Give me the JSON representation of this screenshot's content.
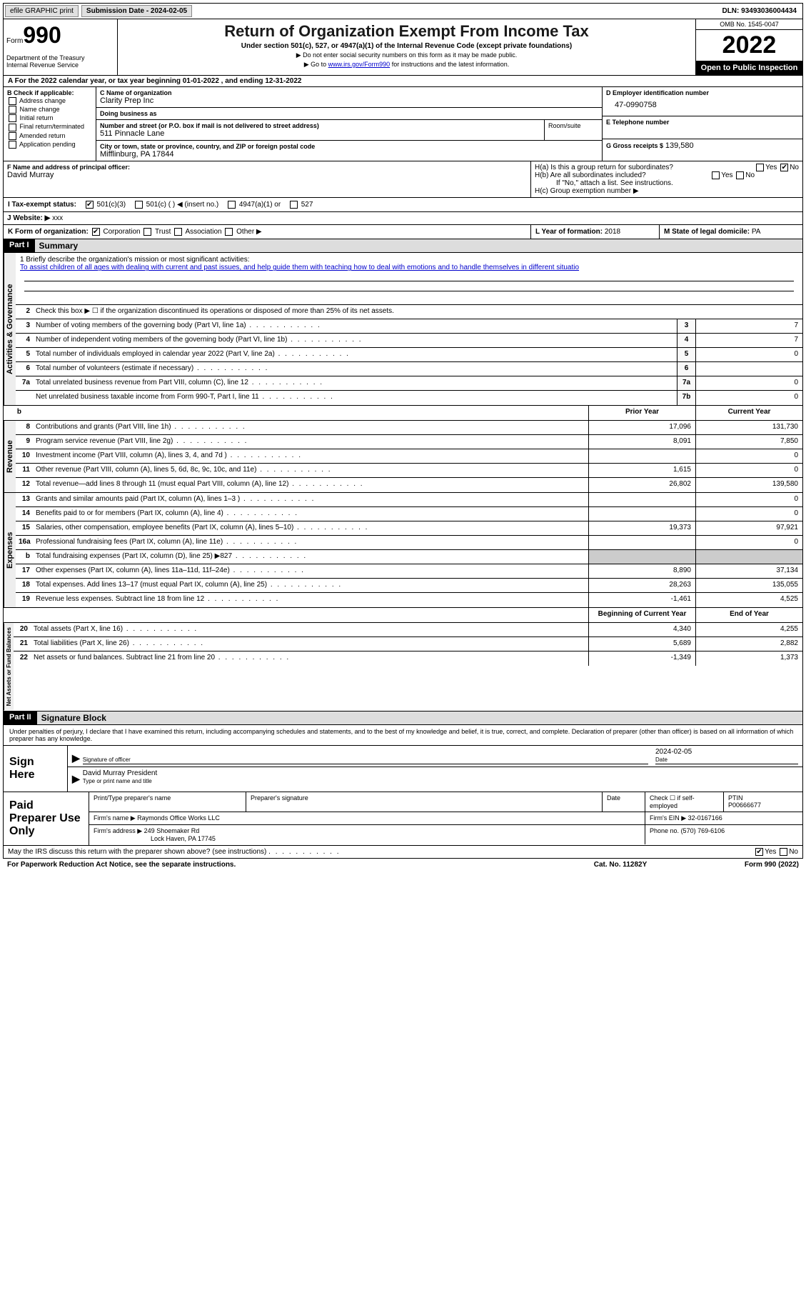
{
  "topbar": {
    "efile": "efile GRAPHIC print",
    "submission_label": "Submission Date - 2024-02-05",
    "dln": "DLN: 93493036004434"
  },
  "header": {
    "form_label": "Form",
    "form_num": "990",
    "title": "Return of Organization Exempt From Income Tax",
    "sub": "Under section 501(c), 527, or 4947(a)(1) of the Internal Revenue Code (except private foundations)",
    "note1": "▶ Do not enter social security numbers on this form as it may be made public.",
    "note2_pre": "▶ Go to ",
    "note2_link": "www.irs.gov/Form990",
    "note2_post": " for instructions and the latest information.",
    "dept": "Department of the Treasury\nInternal Revenue Service",
    "omb": "OMB No. 1545-0047",
    "year": "2022",
    "inspect": "Open to Public Inspection"
  },
  "period": "A For the 2022 calendar year, or tax year beginning 01-01-2022   , and ending 12-31-2022",
  "section_b": {
    "label": "B Check if applicable:",
    "opts": [
      "Address change",
      "Name change",
      "Initial return",
      "Final return/terminated",
      "Amended return",
      "Application pending"
    ]
  },
  "section_c": {
    "name_label": "C Name of organization",
    "name": "Clarity Prep Inc",
    "dba_label": "Doing business as",
    "addr_label": "Number and street (or P.O. box if mail is not delivered to street address)",
    "addr": "511 Pinnacle Lane",
    "room_label": "Room/suite",
    "city_label": "City or town, state or province, country, and ZIP or foreign postal code",
    "city": "Mifflinburg, PA  17844"
  },
  "section_d": {
    "ein_label": "D Employer identification number",
    "ein": "47-0990758",
    "phone_label": "E Telephone number",
    "gross_label": "G Gross receipts $",
    "gross": "139,580"
  },
  "section_f": {
    "label": "F  Name and address of principal officer:",
    "name": "David Murray"
  },
  "section_h": {
    "ha": "H(a)  Is this a group return for subordinates?",
    "hb": "H(b)  Are all subordinates included?",
    "hb_note": "If \"No,\" attach a list. See instructions.",
    "hc": "H(c)  Group exemption number ▶",
    "yes": "Yes",
    "no": "No"
  },
  "section_i": {
    "label": "I  Tax-exempt status:",
    "o1": "501(c)(3)",
    "o2": "501(c) (  ) ◀ (insert no.)",
    "o3": "4947(a)(1) or",
    "o4": "527"
  },
  "section_j": {
    "label": "J  Website: ▶",
    "val": "xxx"
  },
  "section_k": {
    "label": "K Form of organization:",
    "o1": "Corporation",
    "o2": "Trust",
    "o3": "Association",
    "o4": "Other ▶"
  },
  "section_l": {
    "label": "L Year of formation:",
    "val": "2018"
  },
  "section_m": {
    "label": "M State of legal domicile:",
    "val": "PA"
  },
  "part1": {
    "num": "Part I",
    "title": "Summary"
  },
  "mission": {
    "label": "1  Briefly describe the organization's mission or most significant activities:",
    "text": "To assist children of all ages with dealing with current and past issues, and help guide them with teaching how to deal with emotions and to handle themselves in different situatio"
  },
  "line2": "Check this box ▶ ☐ if the organization discontinued its operations or disposed of more than 25% of its net assets.",
  "gov_lines": [
    {
      "n": "3",
      "d": "Number of voting members of the governing body (Part VI, line 1a)",
      "box": "3",
      "v": "7"
    },
    {
      "n": "4",
      "d": "Number of independent voting members of the governing body (Part VI, line 1b)",
      "box": "4",
      "v": "7"
    },
    {
      "n": "5",
      "d": "Total number of individuals employed in calendar year 2022 (Part V, line 2a)",
      "box": "5",
      "v": "0"
    },
    {
      "n": "6",
      "d": "Total number of volunteers (estimate if necessary)",
      "box": "6",
      "v": ""
    },
    {
      "n": "7a",
      "d": "Total unrelated business revenue from Part VIII, column (C), line 12",
      "box": "7a",
      "v": "0"
    },
    {
      "n": "",
      "d": "Net unrelated business taxable income from Form 990-T, Part I, line 11",
      "box": "7b",
      "v": "0"
    }
  ],
  "col_headers": {
    "prior": "Prior Year",
    "current": "Current Year"
  },
  "rev_lines": [
    {
      "n": "8",
      "d": "Contributions and grants (Part VIII, line 1h)",
      "p": "17,096",
      "c": "131,730"
    },
    {
      "n": "9",
      "d": "Program service revenue (Part VIII, line 2g)",
      "p": "8,091",
      "c": "7,850"
    },
    {
      "n": "10",
      "d": "Investment income (Part VIII, column (A), lines 3, 4, and 7d )",
      "p": "",
      "c": "0"
    },
    {
      "n": "11",
      "d": "Other revenue (Part VIII, column (A), lines 5, 6d, 8c, 9c, 10c, and 11e)",
      "p": "1,615",
      "c": "0"
    },
    {
      "n": "12",
      "d": "Total revenue—add lines 8 through 11 (must equal Part VIII, column (A), line 12)",
      "p": "26,802",
      "c": "139,580"
    }
  ],
  "exp_lines": [
    {
      "n": "13",
      "d": "Grants and similar amounts paid (Part IX, column (A), lines 1–3 )",
      "p": "",
      "c": "0"
    },
    {
      "n": "14",
      "d": "Benefits paid to or for members (Part IX, column (A), line 4)",
      "p": "",
      "c": "0"
    },
    {
      "n": "15",
      "d": "Salaries, other compensation, employee benefits (Part IX, column (A), lines 5–10)",
      "p": "19,373",
      "c": "97,921"
    },
    {
      "n": "16a",
      "d": "Professional fundraising fees (Part IX, column (A), line 11e)",
      "p": "",
      "c": "0"
    },
    {
      "n": "b",
      "d": "Total fundraising expenses (Part IX, column (D), line 25) ▶827",
      "p": "shade",
      "c": "shade"
    },
    {
      "n": "17",
      "d": "Other expenses (Part IX, column (A), lines 11a–11d, 11f–24e)",
      "p": "8,890",
      "c": "37,134"
    },
    {
      "n": "18",
      "d": "Total expenses. Add lines 13–17 (must equal Part IX, column (A), line 25)",
      "p": "28,263",
      "c": "135,055"
    },
    {
      "n": "19",
      "d": "Revenue less expenses. Subtract line 18 from line 12",
      "p": "-1,461",
      "c": "4,525"
    }
  ],
  "na_headers": {
    "begin": "Beginning of Current Year",
    "end": "End of Year"
  },
  "na_lines": [
    {
      "n": "20",
      "d": "Total assets (Part X, line 16)",
      "p": "4,340",
      "c": "4,255"
    },
    {
      "n": "21",
      "d": "Total liabilities (Part X, line 26)",
      "p": "5,689",
      "c": "2,882"
    },
    {
      "n": "22",
      "d": "Net assets or fund balances. Subtract line 21 from line 20",
      "p": "-1,349",
      "c": "1,373"
    }
  ],
  "part2": {
    "num": "Part II",
    "title": "Signature Block"
  },
  "sig": {
    "decl": "Under penalties of perjury, I declare that I have examined this return, including accompanying schedules and statements, and to the best of my knowledge and belief, it is true, correct, and complete. Declaration of preparer (other than officer) is based on all information of which preparer has any knowledge.",
    "sign_here": "Sign Here",
    "sig_officer": "Signature of officer",
    "date": "Date",
    "sig_date": "2024-02-05",
    "name_title": "David Murray  President",
    "type_label": "Type or print name and title"
  },
  "prep": {
    "label": "Paid Preparer Use Only",
    "print_label": "Print/Type preparer's name",
    "sig_label": "Preparer's signature",
    "date_label": "Date",
    "check_label": "Check ☐ if self-employed",
    "ptin_label": "PTIN",
    "ptin": "P00666677",
    "firm_name_label": "Firm's name    ▶",
    "firm_name": "Raymonds Office Works LLC",
    "firm_ein_label": "Firm's EIN ▶",
    "firm_ein": "32-0167166",
    "firm_addr_label": "Firm's address ▶",
    "firm_addr": "249 Shoemaker Rd",
    "firm_city": "Lock Haven, PA  17745",
    "phone_label": "Phone no.",
    "phone": "(570) 769-6106"
  },
  "discuss": "May the IRS discuss this return with the preparer shown above? (see instructions)",
  "footer": {
    "pra": "For Paperwork Reduction Act Notice, see the separate instructions.",
    "cat": "Cat. No. 11282Y",
    "form": "Form 990 (2022)"
  },
  "vert_labels": {
    "gov": "Activities & Governance",
    "rev": "Revenue",
    "exp": "Expenses",
    "na": "Net Assets or Fund Balances"
  }
}
